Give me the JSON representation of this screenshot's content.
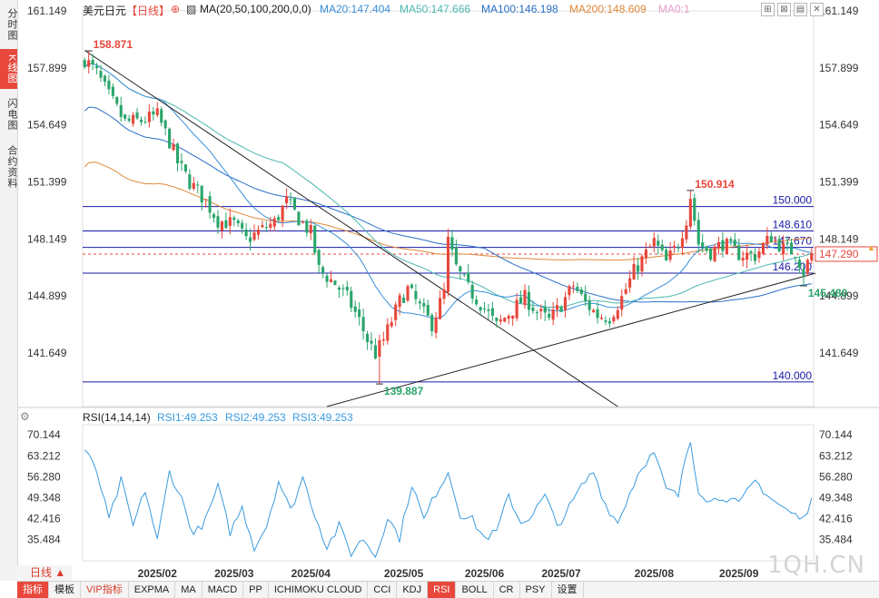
{
  "side_tabs": [
    {
      "label": "分时图",
      "active": false
    },
    {
      "label": "K线图",
      "active": true
    },
    {
      "label": "闪电图",
      "active": false
    },
    {
      "label": "合约资料",
      "active": false
    }
  ],
  "header": {
    "symbol": "美元日元",
    "period_tag": "【日线】",
    "ma_params": "MA(20,50,100,200,0,0)",
    "ma20": "MA20:147.404",
    "ma50": "MA50:147.666",
    "ma100": "MA100:146.198",
    "ma200": "MA200:148.609",
    "ma0": "MA0:1"
  },
  "rsi_header": {
    "params": "RSI(14,14,14)",
    "rsi1": "RSI1:49.253",
    "rsi2": "RSI2:49.253",
    "rsi3": "RSI3:49.253"
  },
  "top_icons": [
    "expand-icon",
    "close-icon",
    "settings-icon",
    "cross-icon"
  ],
  "period_button": "日线",
  "bottom_tabs": [
    {
      "label": "指标",
      "style": "sel"
    },
    {
      "label": "模板",
      "style": ""
    },
    {
      "label": "VIP指标",
      "style": "red"
    },
    {
      "label": "EXPMA",
      "style": ""
    },
    {
      "label": "MA",
      "style": ""
    },
    {
      "label": "MACD",
      "style": ""
    },
    {
      "label": "PP",
      "style": ""
    },
    {
      "label": "ICHIMOKU CLOUD",
      "style": ""
    },
    {
      "label": "CCI",
      "style": ""
    },
    {
      "label": "KDJ",
      "style": ""
    },
    {
      "label": "RSI",
      "style": "sel"
    },
    {
      "label": "BOLL",
      "style": ""
    },
    {
      "label": "CR",
      "style": ""
    },
    {
      "label": "PSY",
      "style": ""
    },
    {
      "label": "设置",
      "style": ""
    }
  ],
  "watermark": "1QH.CN",
  "colors": {
    "up": "#e8473c",
    "down": "#2aa56b",
    "ma20": "#3a8fd8",
    "ma50": "#4bb8b0",
    "ma100": "#2a6fc9",
    "ma200": "#e08a3a",
    "hline": "#1a1aa8",
    "rsi": "#3a9be0",
    "current": "#e8473c"
  },
  "chart_data": {
    "type": "candlestick",
    "price_axis": {
      "ticks": [
        "161.149",
        "157.899",
        "154.649",
        "151.399",
        "148.149",
        "144.899",
        "141.649"
      ],
      "ymin": 138.6,
      "ymax": 161.149
    },
    "rsi_axis": {
      "ticks": [
        "70.144",
        "63.212",
        "56.280",
        "49.348",
        "42.416",
        "35.484"
      ],
      "ymin": 28.5,
      "ymax": 73.5
    },
    "x_labels": [
      "2025/02",
      "2025/03",
      "2025/04",
      "2025/05",
      "2025/06",
      "2025/07",
      "2025/08",
      "2025/09"
    ],
    "horizontal_levels": [
      {
        "value": 150.0,
        "label": "150.000"
      },
      {
        "value": 148.61,
        "label": "148.610"
      },
      {
        "value": 147.67,
        "label": "147.670"
      },
      {
        "value": 146.2,
        "label": "146.200"
      },
      {
        "value": 140.0,
        "label": "140.000"
      }
    ],
    "annotations": [
      {
        "label": "158.871",
        "value": 158.871,
        "bar": 1,
        "color": "up"
      },
      {
        "label": "150.914",
        "value": 150.914,
        "bar": 150,
        "color": "up"
      },
      {
        "label": "139.887",
        "value": 139.887,
        "bar": 73,
        "color": "down"
      },
      {
        "label": "145.480",
        "value": 145.48,
        "bar": 178,
        "color": "down"
      }
    ],
    "current_price": "147.290",
    "current_value": 147.29,
    "bar_count": 181,
    "month_bar_index": [
      18,
      37,
      56,
      79,
      99,
      118,
      141,
      162
    ],
    "close_anchors": [
      [
        0,
        158.4
      ],
      [
        3,
        157.6
      ],
      [
        6,
        156.3
      ],
      [
        10,
        154.8
      ],
      [
        14,
        154.9
      ],
      [
        18,
        155.2
      ],
      [
        21,
        153.7
      ],
      [
        23,
        152.5
      ],
      [
        26,
        151.4
      ],
      [
        30,
        150.3
      ],
      [
        33,
        149.2
      ],
      [
        37,
        149.0
      ],
      [
        40,
        148.1
      ],
      [
        44,
        148.7
      ],
      [
        47,
        149.1
      ],
      [
        50,
        150.3
      ],
      [
        53,
        149.3
      ],
      [
        56,
        148.5
      ],
      [
        58,
        146.4
      ],
      [
        62,
        145.6
      ],
      [
        65,
        144.8
      ],
      [
        68,
        143.5
      ],
      [
        70,
        142.4
      ],
      [
        72,
        141.6
      ],
      [
        74,
        142.4
      ],
      [
        76,
        143.5
      ],
      [
        78,
        144.6
      ],
      [
        80,
        145.3
      ],
      [
        84,
        143.9
      ],
      [
        86,
        143.3
      ],
      [
        89,
        145.1
      ],
      [
        90,
        148.0
      ],
      [
        92,
        146.5
      ],
      [
        95,
        145.3
      ],
      [
        99,
        144.2
      ],
      [
        102,
        143.2
      ],
      [
        105,
        143.9
      ],
      [
        109,
        144.8
      ],
      [
        112,
        144.0
      ],
      [
        115,
        143.5
      ],
      [
        118,
        144.4
      ],
      [
        121,
        145.5
      ],
      [
        124,
        144.5
      ],
      [
        127,
        143.8
      ],
      [
        130,
        143.7
      ],
      [
        133,
        144.8
      ],
      [
        136,
        146.3
      ],
      [
        139,
        147.3
      ],
      [
        141,
        148.0
      ],
      [
        144,
        146.8
      ],
      [
        147,
        147.9
      ],
      [
        149,
        149.3
      ],
      [
        150,
        150.6
      ],
      [
        152,
        147.9
      ],
      [
        155,
        147.4
      ],
      [
        158,
        147.9
      ],
      [
        162,
        147.3
      ],
      [
        166,
        147.2
      ],
      [
        170,
        148.3
      ],
      [
        173,
        147.6
      ],
      [
        176,
        147.4
      ],
      [
        178,
        146.3
      ],
      [
        180,
        147.29
      ]
    ],
    "rsi_anchors": [
      [
        0,
        65
      ],
      [
        3,
        58
      ],
      [
        6,
        42
      ],
      [
        9,
        55
      ],
      [
        12,
        40
      ],
      [
        15,
        52
      ],
      [
        18,
        35
      ],
      [
        21,
        58
      ],
      [
        24,
        49
      ],
      [
        27,
        37
      ],
      [
        30,
        42
      ],
      [
        33,
        53
      ],
      [
        36,
        38
      ],
      [
        39,
        46
      ],
      [
        42,
        33
      ],
      [
        45,
        40
      ],
      [
        48,
        55
      ],
      [
        51,
        45
      ],
      [
        54,
        56
      ],
      [
        57,
        44
      ],
      [
        60,
        33
      ],
      [
        63,
        40
      ],
      [
        66,
        31
      ],
      [
        69,
        36
      ],
      [
        72,
        30
      ],
      [
        75,
        43
      ],
      [
        78,
        36
      ],
      [
        81,
        54
      ],
      [
        84,
        42
      ],
      [
        87,
        51
      ],
      [
        90,
        58
      ],
      [
        93,
        44
      ],
      [
        96,
        42
      ],
      [
        99,
        36
      ],
      [
        102,
        38
      ],
      [
        105,
        50
      ],
      [
        108,
        41
      ],
      [
        111,
        44
      ],
      [
        114,
        50
      ],
      [
        117,
        40
      ],
      [
        120,
        46
      ],
      [
        123,
        53
      ],
      [
        126,
        58
      ],
      [
        129,
        47
      ],
      [
        132,
        41
      ],
      [
        135,
        51
      ],
      [
        138,
        60
      ],
      [
        141,
        64
      ],
      [
        144,
        52
      ],
      [
        147,
        50
      ],
      [
        149,
        64
      ],
      [
        150,
        68
      ],
      [
        152,
        52
      ],
      [
        155,
        48
      ],
      [
        158,
        50
      ],
      [
        162,
        47
      ],
      [
        166,
        55
      ],
      [
        170,
        49
      ],
      [
        174,
        45
      ],
      [
        178,
        42
      ],
      [
        180,
        49.253
      ]
    ],
    "trendlines": [
      {
        "name": "downtrend",
        "from": [
          0,
          158.9
        ],
        "to": [
          132,
          138.6
        ]
      },
      {
        "name": "uptrend",
        "from": [
          60,
          138.6
        ],
        "to": [
          181,
          146.2
        ]
      }
    ]
  }
}
